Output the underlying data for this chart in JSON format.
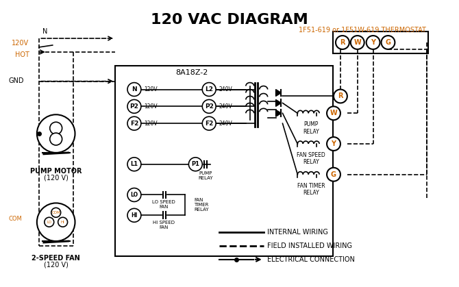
{
  "title": "120 VAC DIAGRAM",
  "title_fontsize": 16,
  "title_fontweight": "bold",
  "bg_color": "#ffffff",
  "line_color": "#000000",
  "orange_color": "#cc6600",
  "thermostat_label": "1F51-619 or 1F51W-619 THERMOSTAT",
  "box_label": "8A18Z-2",
  "legend_items": [
    {
      "label": "INTERNAL WIRING",
      "style": "solid"
    },
    {
      "label": "FIELD INSTALLED WIRING",
      "style": "dashed"
    },
    {
      "label": "ELECTRICAL CONNECTION",
      "style": "arrow"
    }
  ],
  "terminal_labels_left": [
    "N",
    "P2",
    "F2"
  ],
  "terminal_labels_right": [
    "L2",
    "P2",
    "F2"
  ],
  "voltage_left": [
    "120V",
    "120V",
    "120V"
  ],
  "voltage_right": [
    "240V",
    "240V",
    "240V"
  ],
  "thermostat_terminals": [
    "R",
    "W",
    "Y",
    "G"
  ],
  "relay_labels": [
    "PUMP\nRELAY",
    "FAN SPEED\nRELAY",
    "FAN TIMER\nRELAY"
  ],
  "relay_terminals": [
    "W",
    "Y",
    "G"
  ],
  "bottom_labels": [
    "L1",
    "LO",
    "HI"
  ],
  "switch_labels": [
    "P1\nPUMP\nRELAY",
    "LO SPEED\nFAN",
    "FAN\nTIMER\nRELAY",
    "HI SPEED\nFAN"
  ]
}
